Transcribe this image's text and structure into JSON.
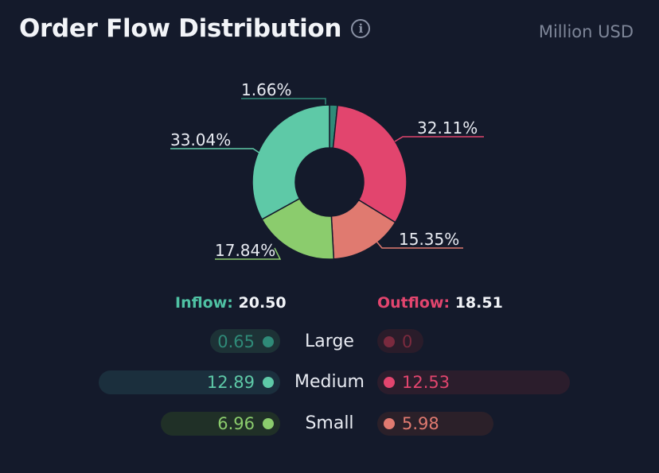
{
  "header": {
    "title": "Order Flow Distribution",
    "unit": "Million USD"
  },
  "colors": {
    "large_in": "#2f8a78",
    "medium_in": "#5ec9a7",
    "small_in": "#8bcc6d",
    "large_out": "#b93a56",
    "medium_out": "#e2456e",
    "small_out": "#e07a70"
  },
  "summary": {
    "inflow_label": "Inflow:",
    "inflow_value": "20.50",
    "outflow_label": "Outflow:",
    "outflow_value": "18.51"
  },
  "breakdown": [
    {
      "category": "Large",
      "inflow": "0.65",
      "outflow": "0"
    },
    {
      "category": "Medium",
      "inflow": "12.89",
      "outflow": "12.53"
    },
    {
      "category": "Small",
      "inflow": "6.96",
      "outflow": "5.98"
    }
  ],
  "chart_data": {
    "type": "pie",
    "variant": "donut",
    "title": "Order Flow Distribution",
    "slices": [
      {
        "name": "Large Inflow",
        "value": 1.66,
        "label": "1.66%",
        "color": "#2f8a78"
      },
      {
        "name": "Large Outflow",
        "value": 0,
        "label": "",
        "color": "#b93a56"
      },
      {
        "name": "Medium Outflow",
        "value": 32.11,
        "label": "32.11%",
        "color": "#e2456e"
      },
      {
        "name": "Small Outflow",
        "value": 15.35,
        "label": "15.35%",
        "color": "#e07a70"
      },
      {
        "name": "Small Inflow",
        "value": 17.84,
        "label": "17.84%",
        "color": "#8bcc6d"
      },
      {
        "name": "Medium Inflow",
        "value": 33.04,
        "label": "33.04%",
        "color": "#5ec9a7"
      }
    ]
  }
}
